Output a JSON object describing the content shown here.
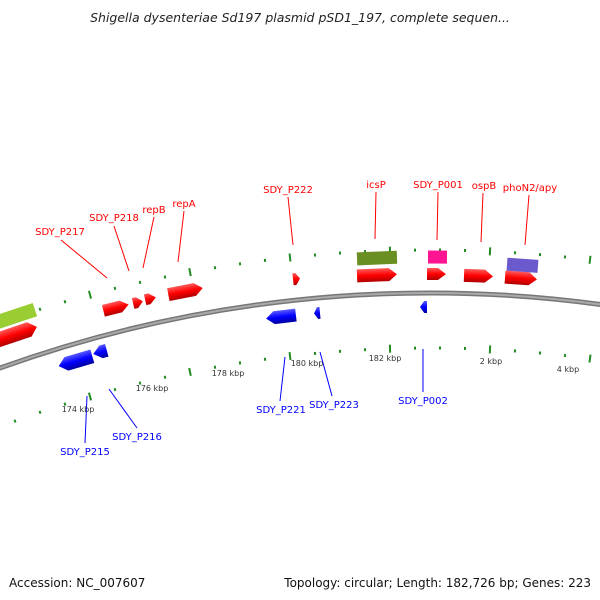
{
  "title": "Shigella dysenteriae Sd197 plasmid pSD1_197, complete sequen...",
  "footer": {
    "accession": "Accession: NC_007607",
    "summary": "Topology: circular; Length: 182,726 bp; Genes: 223"
  },
  "colors": {
    "forward": "#ff0000",
    "reverse": "#0000ff",
    "backbone": "#888888",
    "ticks": "#228b22",
    "cds_green": "#6b8e23",
    "cds_lime": "#9acd32",
    "cds_pink": "#ff1493",
    "cds_purple": "#6a5acd"
  },
  "forward_labels": [
    "SDY_P217",
    "SDY_P218",
    "repB",
    "repA",
    "SDY_P222",
    "icsP",
    "SDY_P001",
    "ospB",
    "phoN2/apy"
  ],
  "reverse_labels": [
    "SDY_P215",
    "SDY_P216",
    "SDY_P221",
    "SDY_P223",
    "SDY_P002"
  ],
  "tick_labels": [
    "174 kbp",
    "176 kbp",
    "178 kbp",
    "180 kbp",
    "182 kbp",
    "2 kbp",
    "4 kbp"
  ]
}
